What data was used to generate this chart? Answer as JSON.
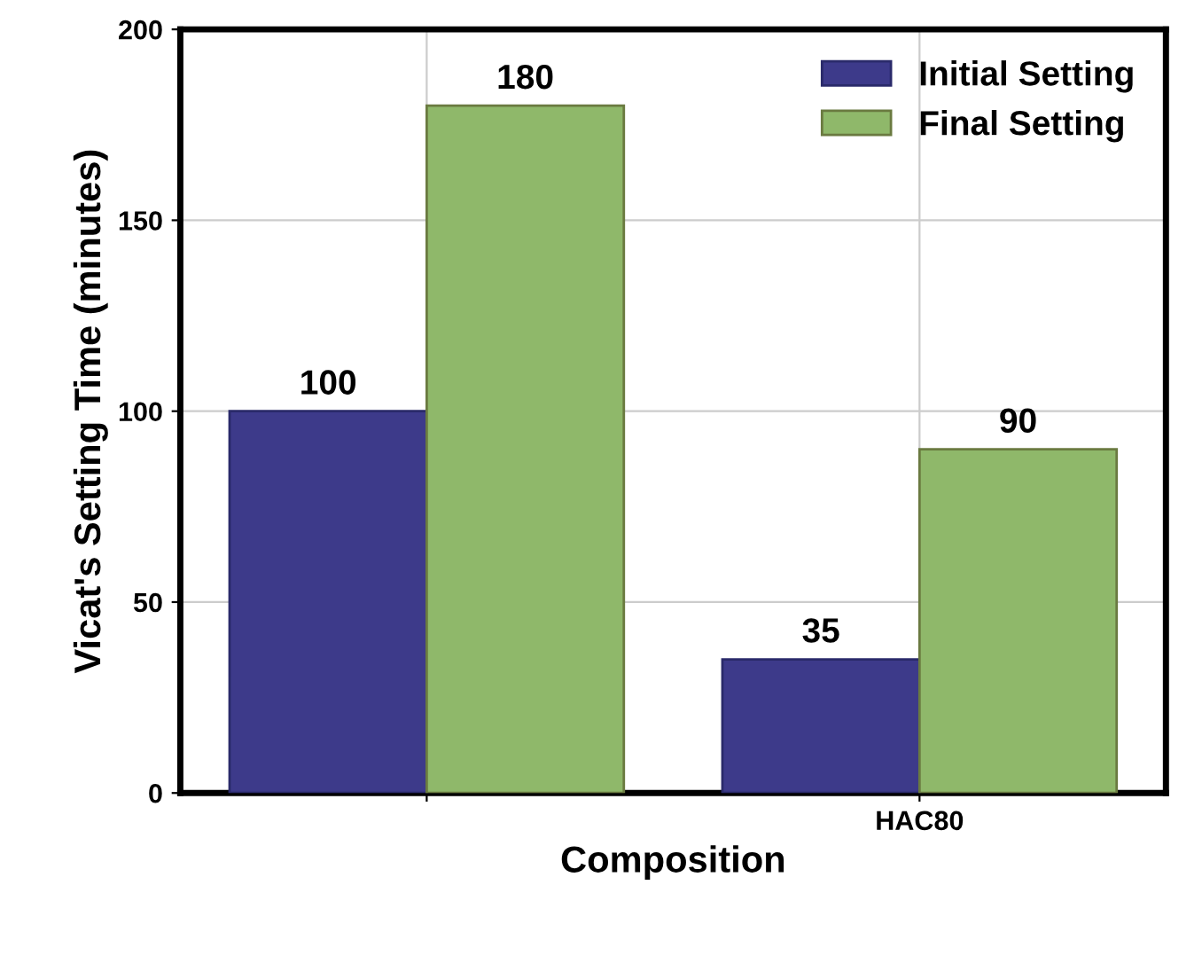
{
  "chart_data": {
    "type": "bar",
    "xlabel": "Composition",
    "ylabel": "Vicat's Setting Time (minutes)",
    "categories": [
      null,
      "HAC80"
    ],
    "series": [
      {
        "name": "Initial Setting",
        "color": "#3d3a8a",
        "values": [
          100,
          35
        ]
      },
      {
        "name": "Final Setting",
        "color": "#8fb86a",
        "values": [
          180,
          90
        ]
      }
    ],
    "ylim": [
      0,
      200
    ],
    "yticks": [
      0,
      50,
      100,
      150,
      200
    ],
    "grid": true,
    "legend": "top right",
    "data_labels": true
  }
}
